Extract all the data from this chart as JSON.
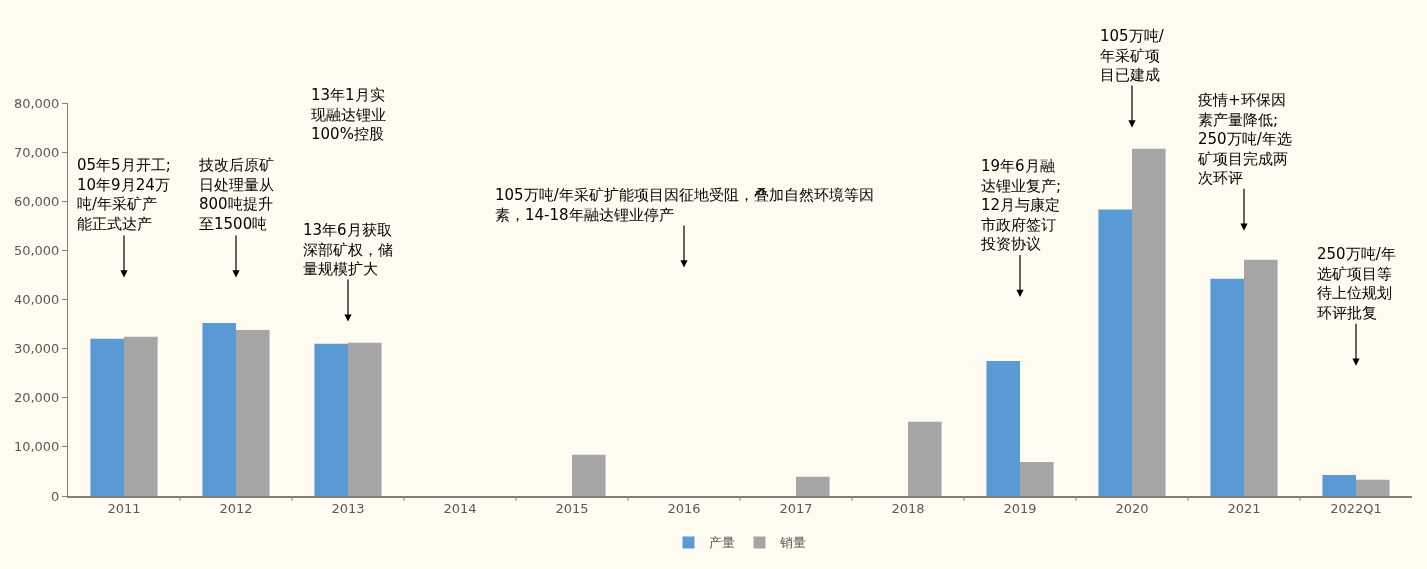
{
  "chart_data": {
    "type": "bar",
    "categories": [
      "2011",
      "2012",
      "2013",
      "2014",
      "2015",
      "2016",
      "2017",
      "2018",
      "2019",
      "2020",
      "2021",
      "2022Q1"
    ],
    "series": [
      {
        "name": "产量",
        "color": "#5b9bd5",
        "values": [
          32000,
          35200,
          31000,
          null,
          null,
          null,
          null,
          null,
          27500,
          58300,
          44200,
          4300
        ]
      },
      {
        "name": "销量",
        "color": "#a5a5a5",
        "values": [
          32400,
          33800,
          31200,
          null,
          8400,
          null,
          3900,
          15100,
          6900,
          70700,
          48100,
          3300
        ]
      }
    ],
    "ylim": [
      0,
      80000
    ],
    "yticks": [
      {
        "value": 0,
        "label": "0"
      },
      {
        "value": 10000,
        "label": "10,000"
      },
      {
        "value": 20000,
        "label": "20,000"
      },
      {
        "value": 30000,
        "label": "30,000"
      },
      {
        "value": 40000,
        "label": "40,000"
      },
      {
        "value": 50000,
        "label": "50,000"
      },
      {
        "value": 60000,
        "label": "60,000"
      },
      {
        "value": 70000,
        "label": "70,000"
      },
      {
        "value": 80000,
        "label": "80,000"
      }
    ],
    "grid": false,
    "legend": "bottom",
    "annotations": [
      "05年5月开工;10年9月24万吨/年采矿产能正式达产",
      "技改后原矿日处理量从800吨提升至1500吨",
      "13年1月实现融达锂业100%控股",
      "13年6月获取深部矿权，储量规模扩大",
      "105万吨/年采矿扩能项目因征地受阻，叠加自然环境等因素，14-18年融达锂业停产",
      "19年6月融达锂业复产;12月与康定市政府签订投资协议",
      "105万吨/年采矿项目已建成",
      "疫情+环保因素产量降低;250万吨/年选矿项目完成两次环评",
      "250万吨/年选矿项目等待上位规划环评批复"
    ]
  }
}
